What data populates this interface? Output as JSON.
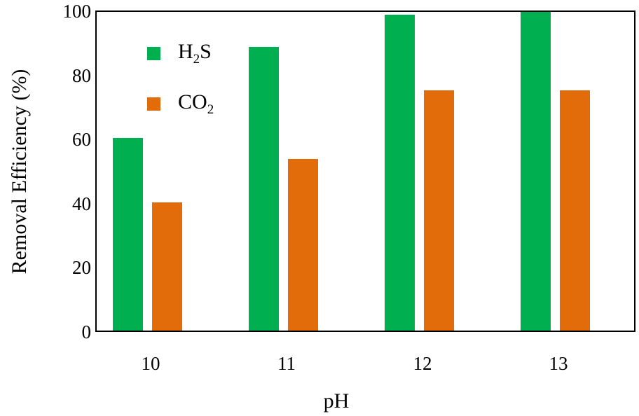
{
  "chart_data": {
    "type": "bar",
    "title": "",
    "xlabel": "pH",
    "ylabel": "Removal  Efficiency (%)",
    "ylim": [
      0,
      100
    ],
    "yticks": [
      "0",
      "20",
      "40",
      "60",
      "80",
      "100"
    ],
    "categories": [
      "10",
      "11",
      "12",
      "13"
    ],
    "series": [
      {
        "name": "H2S",
        "label_main": "H",
        "label_sub": "2",
        "label_tail": "S",
        "color": "#00b050",
        "values": [
          60,
          88.5,
          98.5,
          100
        ]
      },
      {
        "name": "CO2",
        "label_main": "CO",
        "label_sub": "2",
        "label_tail": "",
        "color": "#e36c0a",
        "values": [
          40,
          53.5,
          75,
          75
        ]
      }
    ],
    "grid": false,
    "legend_position": "upper-left-inside"
  }
}
